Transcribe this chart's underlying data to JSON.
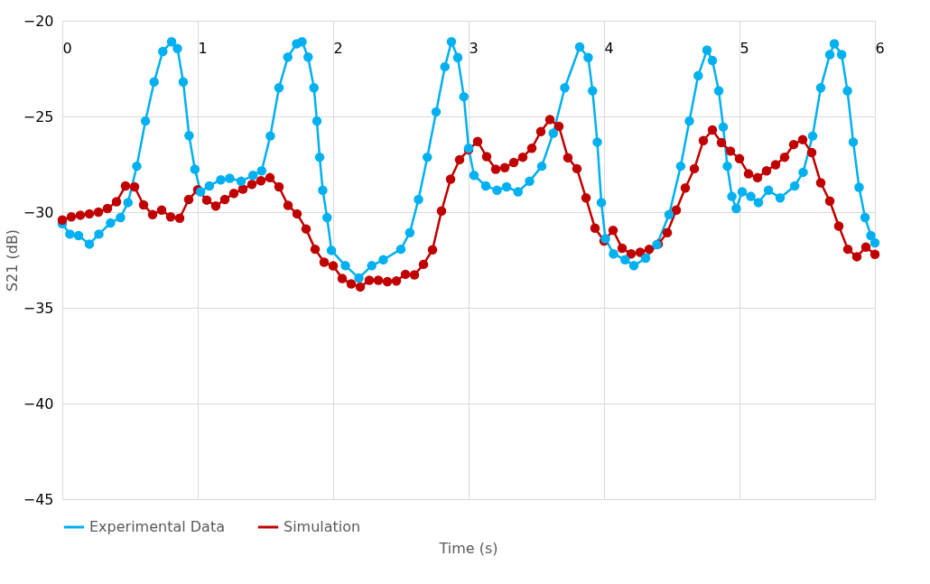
{
  "chart_data": {
    "type": "line",
    "xlabel": "Time (s)",
    "ylabel": "S21 (dB)",
    "xlim": [
      0,
      6
    ],
    "xticks": [
      0,
      1,
      2,
      3,
      4,
      5,
      6
    ],
    "ylim": [
      -45,
      -20
    ],
    "yticks": [
      -45,
      -40,
      -35,
      -30,
      -25,
      -20
    ],
    "grid": true,
    "legend": "bottom",
    "marker": "circle",
    "line_style": "solid",
    "series": [
      {
        "name": "Experimental Data",
        "color": "#00b0f0",
        "x": [
          0,
          0.056,
          0.12,
          0.2,
          0.27,
          0.356,
          0.43,
          0.485,
          0.55,
          0.614,
          0.678,
          0.742,
          0.807,
          0.85,
          0.893,
          0.936,
          0.979,
          1.021,
          1.086,
          1.17,
          1.236,
          1.32,
          1.408,
          1.472,
          1.536,
          1.6,
          1.665,
          1.73,
          1.77,
          1.815,
          1.858,
          1.88,
          1.9,
          1.923,
          1.955,
          1.987,
          2.09,
          2.19,
          2.285,
          2.37,
          2.5,
          2.566,
          2.63,
          2.695,
          2.76,
          2.825,
          2.873,
          2.92,
          2.965,
          3.0,
          3.04,
          3.127,
          3.21,
          3.28,
          3.365,
          3.45,
          3.54,
          3.625,
          3.71,
          3.82,
          3.883,
          3.915,
          3.95,
          3.98,
          4.01,
          4.07,
          4.155,
          4.22,
          4.307,
          4.39,
          4.48,
          4.566,
          4.63,
          4.695,
          4.76,
          4.8,
          4.847,
          4.88,
          4.91,
          4.944,
          4.976,
          5.02,
          5.084,
          5.14,
          5.214,
          5.3,
          5.408,
          5.47,
          5.54,
          5.6,
          5.667,
          5.7,
          5.754,
          5.797,
          5.84,
          5.883,
          5.927,
          5.97,
          6.0
        ],
        "values": [
          -30.6,
          -31.15,
          -31.23,
          -31.67,
          -31.15,
          -30.57,
          -30.28,
          -29.5,
          -27.6,
          -25.24,
          -23.2,
          -21.6,
          -21.1,
          -21.45,
          -23.2,
          -26.0,
          -27.76,
          -28.94,
          -28.63,
          -28.31,
          -28.23,
          -28.39,
          -28.08,
          -27.84,
          -26.02,
          -23.5,
          -21.9,
          -21.2,
          -21.1,
          -21.9,
          -23.5,
          -25.24,
          -27.13,
          -28.86,
          -30.28,
          -32.0,
          -32.8,
          -33.44,
          -32.8,
          -32.49,
          -31.94,
          -31.07,
          -29.34,
          -27.13,
          -24.76,
          -22.4,
          -21.1,
          -21.92,
          -23.97,
          -26.66,
          -28.08,
          -28.63,
          -28.86,
          -28.68,
          -28.94,
          -28.39,
          -27.6,
          -25.87,
          -23.5,
          -21.37,
          -21.92,
          -23.66,
          -26.34,
          -29.5,
          -31.39,
          -32.18,
          -32.49,
          -32.8,
          -32.41,
          -31.7,
          -30.13,
          -27.6,
          -25.24,
          -22.87,
          -21.53,
          -22.08,
          -23.66,
          -25.55,
          -27.6,
          -29.18,
          -29.81,
          -28.94,
          -29.18,
          -29.5,
          -28.86,
          -29.26,
          -28.63,
          -27.92,
          -26.02,
          -23.5,
          -21.77,
          -21.2,
          -21.77,
          -23.66,
          -26.34,
          -28.7,
          -30.28,
          -31.23,
          -31.6
        ]
      },
      {
        "name": "Simulation",
        "color": "#c00000",
        "x": [
          0,
          0.0667,
          0.1333,
          0.2,
          0.2667,
          0.3333,
          0.4,
          0.4667,
          0.5333,
          0.6,
          0.6667,
          0.7333,
          0.8,
          0.8667,
          0.9333,
          1.0,
          1.0667,
          1.1333,
          1.2,
          1.2667,
          1.3333,
          1.4,
          1.4667,
          1.5333,
          1.6,
          1.6667,
          1.7333,
          1.8,
          1.8667,
          1.9333,
          2.0,
          2.0667,
          2.1333,
          2.2,
          2.2667,
          2.3333,
          2.4,
          2.4667,
          2.5333,
          2.6,
          2.6667,
          2.7333,
          2.8,
          2.8667,
          2.9333,
          3.0,
          3.0667,
          3.1333,
          3.2,
          3.2667,
          3.3333,
          3.4,
          3.4667,
          3.5333,
          3.6,
          3.6667,
          3.7333,
          3.8,
          3.8667,
          3.9333,
          4.0,
          4.0667,
          4.1333,
          4.2,
          4.2667,
          4.3333,
          4.4,
          4.4667,
          4.5333,
          4.6,
          4.6667,
          4.7333,
          4.8,
          4.8667,
          4.9333,
          5.0,
          5.0667,
          5.1333,
          5.2,
          5.2667,
          5.3333,
          5.4,
          5.4667,
          5.5333,
          5.6,
          5.6667,
          5.7333,
          5.8,
          5.8667,
          5.9333,
          6.0
        ],
        "values": [
          -30.41,
          -30.25,
          -30.16,
          -30.09,
          -30.0,
          -29.81,
          -29.46,
          -28.63,
          -28.68,
          -29.62,
          -30.13,
          -29.89,
          -30.25,
          -30.32,
          -29.34,
          -28.83,
          -29.37,
          -29.68,
          -29.34,
          -29.02,
          -28.8,
          -28.55,
          -28.36,
          -28.2,
          -28.68,
          -29.65,
          -30.09,
          -30.88,
          -31.94,
          -32.62,
          -32.81,
          -33.47,
          -33.75,
          -33.91,
          -33.56,
          -33.56,
          -33.63,
          -33.6,
          -33.25,
          -33.28,
          -32.73,
          -31.97,
          -29.94,
          -28.28,
          -27.26,
          -26.74,
          -26.31,
          -27.1,
          -27.76,
          -27.68,
          -27.41,
          -27.13,
          -26.66,
          -25.79,
          -25.16,
          -25.52,
          -27.16,
          -27.73,
          -29.26,
          -30.84,
          -31.51,
          -30.95,
          -31.89,
          -32.18,
          -32.1,
          -31.94,
          -31.67,
          -31.07,
          -29.89,
          -28.74,
          -27.73,
          -26.26,
          -25.71,
          -26.37,
          -26.81,
          -27.21,
          -28.0,
          -28.2,
          -27.84,
          -27.52,
          -27.13,
          -26.47,
          -26.21,
          -26.89,
          -28.47,
          -29.42,
          -30.73,
          -31.94,
          -32.33,
          -31.83,
          -32.21
        ]
      }
    ]
  }
}
